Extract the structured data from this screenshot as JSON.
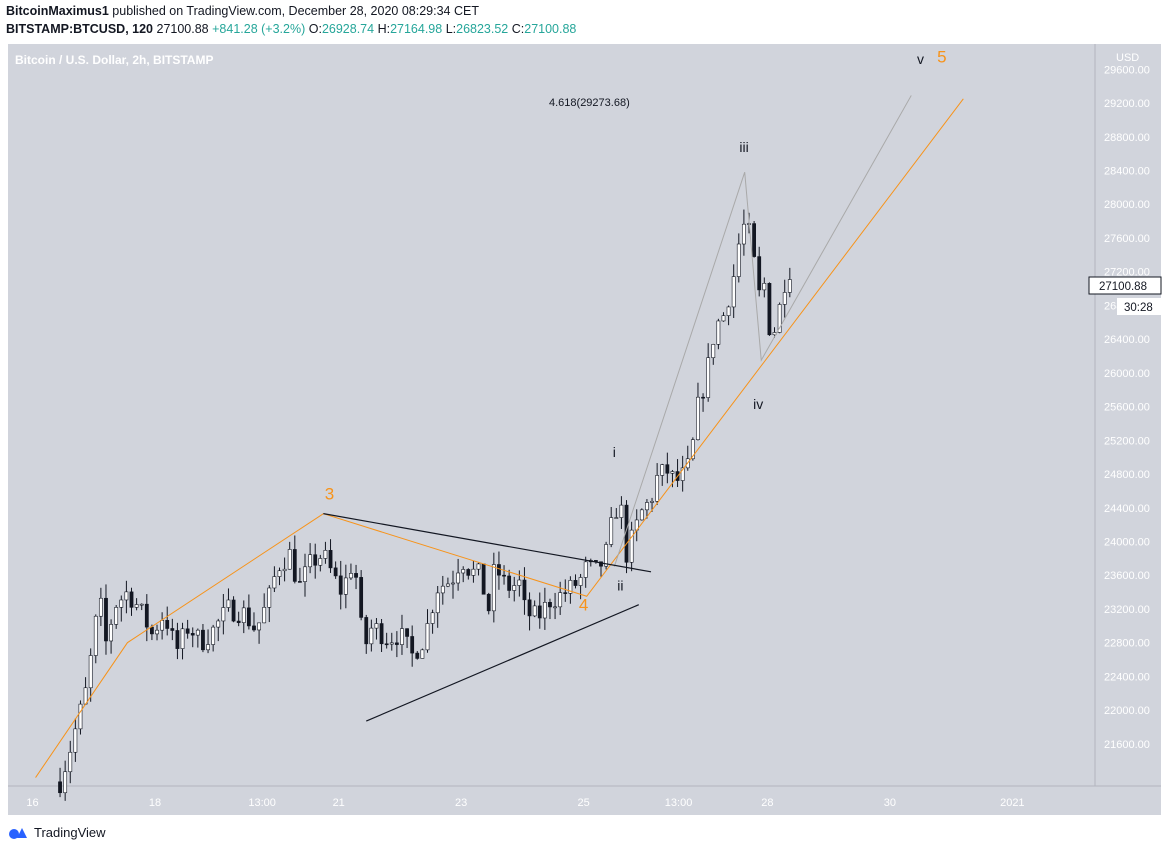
{
  "header": {
    "author": "BitcoinMaximus1",
    "published": " published on TradingView.com, December 28, 2020 08:29:34 CET",
    "symbol": "BITSTAMP:BTCUSD, 120",
    "last": "27100.88",
    "change": "+841.28 (+3.2%)",
    "o_label": "O:",
    "o": "26928.74",
    "h_label": "H:",
    "h": "27164.98",
    "l_label": "L:",
    "l": "26823.52",
    "c_label": "C:",
    "c": "27100.88"
  },
  "footer": {
    "brand": "TradingView"
  },
  "colors": {
    "background": "#d1d4dc",
    "candle_up": "#ffffff",
    "candle_down": "#131722",
    "orange": "#f7931a",
    "wave_line": "#a9a9a9",
    "trend_line": "#131722",
    "up": "#26a69a"
  },
  "chart_data": {
    "type": "candlestick",
    "title": "Bitcoin / U.S. Dollar, 2h, BITSTAMP",
    "currency": "USD",
    "ylim": [
      21100,
      29900
    ],
    "y_ticks": [
      21600,
      22000,
      22400,
      22800,
      23200,
      23600,
      24000,
      24400,
      24800,
      25200,
      25600,
      26000,
      26400,
      26800,
      27200,
      27600,
      28000,
      28400,
      28800,
      29200,
      29600
    ],
    "y_tick_labels": [
      "21600.00",
      "22000.00",
      "22400.00",
      "22800.00",
      "23200.00",
      "23600.00",
      "24000.00",
      "24400.00",
      "24800.00",
      "25200.00",
      "25600.00",
      "26000.00",
      "26400.00",
      "26800.00",
      "27200.00",
      "27600.00",
      "28000.00",
      "28400.00",
      "28800.00",
      "29200.00",
      "29600.00"
    ],
    "x_ticks": [
      {
        "label": "16",
        "t": 0
      },
      {
        "label": "18",
        "t": 2
      },
      {
        "label": "13:00",
        "t": 3.75
      },
      {
        "label": "21",
        "t": 5
      },
      {
        "label": "23",
        "t": 7
      },
      {
        "label": "25",
        "t": 9
      },
      {
        "label": "13:00",
        "t": 10.55
      },
      {
        "label": "28",
        "t": 12
      },
      {
        "label": "30",
        "t": 14
      },
      {
        "label": "2021",
        "t": 16
      }
    ],
    "xlim": [
      -0.4,
      17.35
    ],
    "price_label": "27100.88",
    "countdown": "30:28",
    "grid": false,
    "candles": [],
    "annotations": {
      "fib": "4.618(29273.68)",
      "waves": [
        {
          "text": "3",
          "t": 4.85,
          "price": 24500,
          "color": "orange",
          "size": 17
        },
        {
          "text": "4",
          "t": 9.0,
          "price": 23180,
          "color": "orange",
          "size": 17
        },
        {
          "text": "5",
          "t": 14.85,
          "price": 29680,
          "color": "orange",
          "size": 17
        },
        {
          "text": "i",
          "t": 9.5,
          "price": 25000,
          "color": "dark",
          "size": 14
        },
        {
          "text": "ii",
          "t": 9.6,
          "price": 23420,
          "color": "dark",
          "size": 14
        },
        {
          "text": "iii",
          "t": 11.62,
          "price": 28620,
          "color": "dark",
          "size": 14
        },
        {
          "text": "iv",
          "t": 11.85,
          "price": 25570,
          "color": "dark",
          "size": 14
        },
        {
          "text": "v",
          "t": 14.5,
          "price": 29660,
          "color": "dark",
          "size": 14
        }
      ]
    },
    "lines": [
      {
        "kind": "orange",
        "points": [
          [
            0.05,
            21200
          ],
          [
            1.55,
            22800
          ],
          [
            4.75,
            24330
          ],
          [
            9.05,
            23350
          ],
          [
            10.75,
            24980
          ],
          [
            15.2,
            29250
          ]
        ]
      },
      {
        "kind": "grey",
        "points": [
          [
            9.5,
            23700
          ],
          [
            11.63,
            28380
          ],
          [
            11.9,
            26150
          ],
          [
            14.35,
            29290
          ]
        ]
      },
      {
        "kind": "trend",
        "points": [
          [
            4.75,
            24330
          ],
          [
            10.1,
            23640
          ]
        ]
      },
      {
        "kind": "trend",
        "points": [
          [
            5.45,
            21870
          ],
          [
            9.9,
            23250
          ]
        ]
      }
    ]
  }
}
